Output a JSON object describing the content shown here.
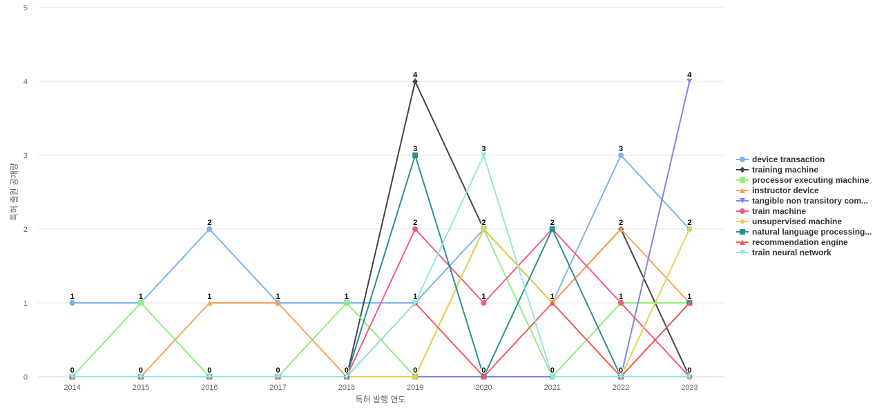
{
  "chart_data": {
    "type": "line",
    "xlabel": "특허 발행 연도",
    "ylabel": "특허 출원 공개량",
    "categories": [
      "2014",
      "2015",
      "2016",
      "2017",
      "2018",
      "2019",
      "2020",
      "2021",
      "2022",
      "2023"
    ],
    "ylim": [
      0,
      5
    ],
    "yticks": [
      0,
      1,
      2,
      3,
      4,
      5
    ],
    "grid": true,
    "legend_position": "right",
    "series": [
      {
        "name": "device transaction",
        "color": "#7cb5ec",
        "marker": "circle",
        "values": [
          1,
          1,
          2,
          1,
          1,
          1,
          2,
          1,
          3,
          2
        ]
      },
      {
        "name": "training machine",
        "color": "#434348",
        "marker": "diamond",
        "values": [
          0,
          0,
          0,
          0,
          0,
          4,
          2,
          1,
          2,
          0
        ]
      },
      {
        "name": "processor executing machine",
        "color": "#90ed7d",
        "marker": "square",
        "values": [
          0,
          1,
          0,
          0,
          1,
          0,
          2,
          0,
          1,
          1
        ]
      },
      {
        "name": "instructor device",
        "color": "#f7a35c",
        "marker": "triangle",
        "values": [
          0,
          0,
          1,
          1,
          0,
          0,
          2,
          1,
          2,
          1
        ]
      },
      {
        "name": "tangible non transitory com...",
        "color": "#8085e9",
        "marker": "triangle-down",
        "values": [
          0,
          0,
          0,
          0,
          0,
          0,
          0,
          0,
          0,
          4
        ]
      },
      {
        "name": "train machine",
        "color": "#f15c80",
        "marker": "circle",
        "values": [
          0,
          0,
          0,
          0,
          0,
          2,
          1,
          2,
          1,
          0
        ]
      },
      {
        "name": "unsupervised machine",
        "color": "#e4d354",
        "marker": "diamond",
        "values": [
          0,
          0,
          0,
          0,
          0,
          0,
          2,
          1,
          0,
          2
        ]
      },
      {
        "name": "natural language processing...",
        "color": "#2b908f",
        "marker": "square",
        "values": [
          0,
          0,
          0,
          0,
          0,
          3,
          0,
          2,
          0,
          1
        ]
      },
      {
        "name": "recommendation engine",
        "color": "#f45b5b",
        "marker": "triangle",
        "values": [
          0,
          0,
          0,
          0,
          0,
          1,
          0,
          1,
          0,
          1
        ]
      },
      {
        "name": "train neural network",
        "color": "#91e8e1",
        "marker": "triangle-down",
        "values": [
          0,
          0,
          0,
          0,
          0,
          1,
          3,
          0,
          0,
          0
        ]
      }
    ],
    "data_labels": [
      {
        "x": "2014",
        "value": 1
      },
      {
        "x": "2014",
        "value": 0
      },
      {
        "x": "2015",
        "value": 1
      },
      {
        "x": "2015",
        "value": 0
      },
      {
        "x": "2016",
        "value": 2
      },
      {
        "x": "2016",
        "value": 1
      },
      {
        "x": "2016",
        "value": 0
      },
      {
        "x": "2017",
        "value": 1
      },
      {
        "x": "2017",
        "value": 0
      },
      {
        "x": "2018",
        "value": 1
      },
      {
        "x": "2018",
        "value": 0
      },
      {
        "x": "2019",
        "value": 4
      },
      {
        "x": "2019",
        "value": 3
      },
      {
        "x": "2019",
        "value": 2
      },
      {
        "x": "2019",
        "value": 1
      },
      {
        "x": "2019",
        "value": 0
      },
      {
        "x": "2020",
        "value": 3
      },
      {
        "x": "2020",
        "value": 2
      },
      {
        "x": "2020",
        "value": 1
      },
      {
        "x": "2020",
        "value": 0
      },
      {
        "x": "2021",
        "value": 2
      },
      {
        "x": "2021",
        "value": 1
      },
      {
        "x": "2021",
        "value": 0
      },
      {
        "x": "2022",
        "value": 3
      },
      {
        "x": "2022",
        "value": 2
      },
      {
        "x": "2022",
        "value": 1
      },
      {
        "x": "2022",
        "value": 0
      },
      {
        "x": "2023",
        "value": 4
      },
      {
        "x": "2023",
        "value": 2
      },
      {
        "x": "2023",
        "value": 1
      },
      {
        "x": "2023",
        "value": 0
      }
    ]
  }
}
